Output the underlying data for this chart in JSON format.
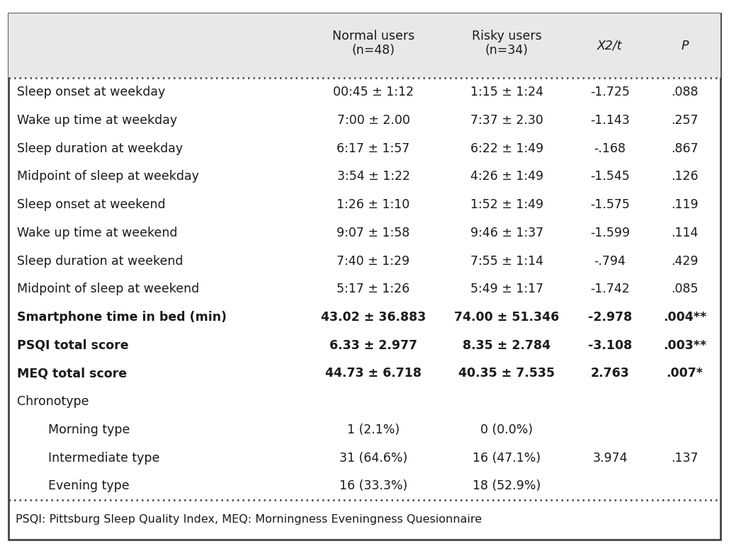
{
  "header": [
    "",
    "Normal users\n(n=48)",
    "Risky users\n(n=34)",
    "X2/t",
    "P"
  ],
  "rows": [
    {
      "label": "Sleep onset at weekday",
      "normal": "00:45 ± 1:12",
      "risky": "1:15 ± 1:24",
      "stat": "-1.725",
      "p": ".088",
      "bold": false,
      "indent": false
    },
    {
      "label": "Wake up time at weekday",
      "normal": "7:00 ± 2.00",
      "risky": "7:37 ± 2.30",
      "stat": "-1.143",
      "p": ".257",
      "bold": false,
      "indent": false
    },
    {
      "label": "Sleep duration at weekday",
      "normal": "6:17 ± 1:57",
      "risky": "6:22 ± 1:49",
      "stat": "-.168",
      "p": ".867",
      "bold": false,
      "indent": false
    },
    {
      "label": "Midpoint of sleep at weekday",
      "normal": "3:54 ± 1:22",
      "risky": "4:26 ± 1:49",
      "stat": "-1.545",
      "p": ".126",
      "bold": false,
      "indent": false
    },
    {
      "label": "Sleep onset at weekend",
      "normal": "1:26 ± 1:10",
      "risky": "1:52 ± 1:49",
      "stat": "-1.575",
      "p": ".119",
      "bold": false,
      "indent": false
    },
    {
      "label": "Wake up time at weekend",
      "normal": "9:07 ± 1:58",
      "risky": "9:46 ± 1:37",
      "stat": "-1.599",
      "p": ".114",
      "bold": false,
      "indent": false
    },
    {
      "label": "Sleep duration at weekend",
      "normal": "7:40 ± 1:29",
      "risky": "7:55 ± 1:14",
      "stat": "-.794",
      "p": ".429",
      "bold": false,
      "indent": false
    },
    {
      "label": "Midpoint of sleep at weekend",
      "normal": "5:17 ± 1:26",
      "risky": "5:49 ± 1:17",
      "stat": "-1.742",
      "p": ".085",
      "bold": false,
      "indent": false
    },
    {
      "label": "Smartphone time in bed (min)",
      "normal": "43.02 ± 36.883",
      "risky": "74.00 ± 51.346",
      "stat": "-2.978",
      "p": ".004**",
      "bold": true,
      "indent": false
    },
    {
      "label": "PSQI total score",
      "normal": "6.33 ± 2.977",
      "risky": "8.35 ± 2.784",
      "stat": "-3.108",
      "p": ".003**",
      "bold": true,
      "indent": false
    },
    {
      "label": "MEQ total score",
      "normal": "44.73 ± 6.718",
      "risky": "40.35 ± 7.535",
      "stat": "2.763",
      "p": ".007*",
      "bold": true,
      "indent": false
    },
    {
      "label": "Chronotype",
      "normal": "",
      "risky": "",
      "stat": "",
      "p": "",
      "bold": false,
      "indent": false
    },
    {
      "label": "Morning type",
      "normal": "1 (2.1%)",
      "risky": "0 (0.0%)",
      "stat": "",
      "p": "",
      "bold": false,
      "indent": true
    },
    {
      "label": "Intermediate type",
      "normal": "31 (64.6%)",
      "risky": "16 (47.1%)",
      "stat": "3.974",
      "p": ".137",
      "bold": false,
      "indent": true
    },
    {
      "label": "Evening type",
      "normal": "16 (33.3%)",
      "risky": "18 (52.9%)",
      "stat": "",
      "p": "",
      "bold": false,
      "indent": true
    }
  ],
  "footnote": "PSQI: Pittsburg Sleep Quality Index, MEQ: Morningness Eveningness Quesionnaire",
  "bg_header": "#e8e8e8",
  "bg_white": "#ffffff",
  "text_color": "#1a1a1a",
  "border_color": "#444444",
  "font_size": 12.5,
  "header_font_size": 12.5,
  "footnote_font_size": 11.5
}
